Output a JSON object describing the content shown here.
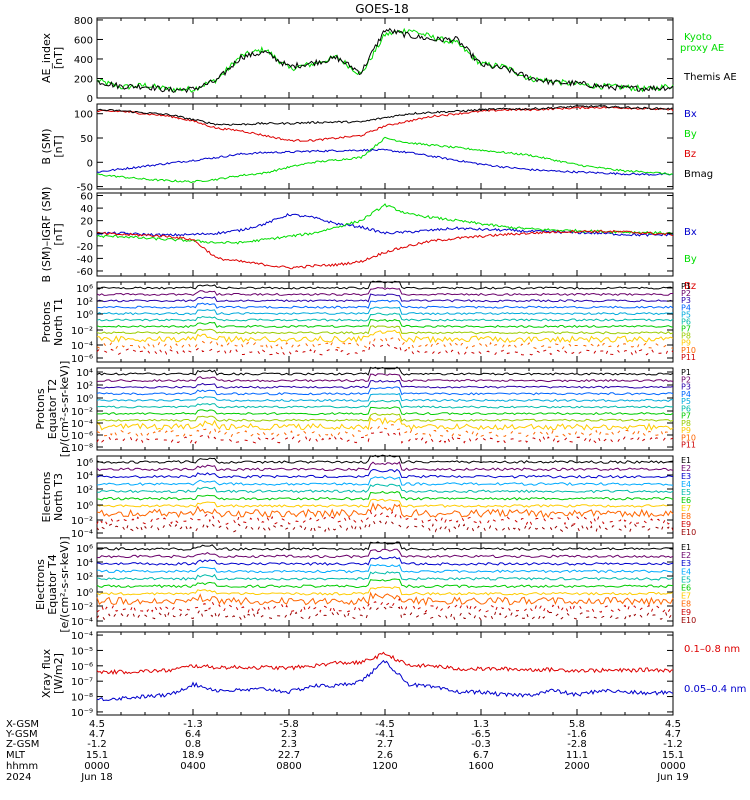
{
  "title": "GOES-18",
  "chart_data": [
    {
      "type": "line",
      "panel": "ae",
      "ylabel": "AE_index [nT]",
      "yticks": [
        "0",
        "200",
        "400",
        "600",
        "800"
      ],
      "ylim": [
        0,
        820
      ],
      "x": [
        0,
        1,
        2,
        3,
        4,
        5,
        6,
        7,
        8,
        9,
        10,
        11,
        12,
        13,
        14,
        15,
        16,
        17,
        18,
        19,
        20,
        21,
        22,
        23,
        24
      ],
      "series": [
        {
          "name": "Kyoto proxy AE",
          "color": "#00dd00",
          "values": [
            180,
            110,
            130,
            90,
            90,
            190,
            430,
            500,
            300,
            350,
            420,
            240,
            650,
            700,
            620,
            560,
            350,
            320,
            200,
            170,
            140,
            120,
            110,
            90,
            130
          ]
        },
        {
          "name": "Themis AE",
          "color": "#000000",
          "values": [
            170,
            120,
            120,
            80,
            90,
            180,
            420,
            470,
            320,
            360,
            410,
            260,
            700,
            640,
            600,
            600,
            340,
            300,
            210,
            160,
            150,
            120,
            100,
            100,
            110
          ]
        }
      ]
    },
    {
      "type": "line",
      "panel": "b",
      "ylabel": "B (SM) [nT]",
      "yticks": [
        "-50",
        "0",
        "50",
        "100"
      ],
      "ylim": [
        -55,
        120
      ],
      "x": [
        0,
        1,
        2,
        3,
        4,
        5,
        6,
        7,
        8,
        9,
        10,
        11,
        12,
        13,
        14,
        15,
        16,
        17,
        18,
        19,
        20,
        21,
        22,
        23,
        24
      ],
      "series": [
        {
          "name": "Bx",
          "color": "#0000cc",
          "values": [
            -20,
            -14,
            -8,
            -2,
            4,
            10,
            17,
            20,
            21,
            23,
            24,
            25,
            25,
            20,
            12,
            4,
            -4,
            -10,
            -15,
            -18,
            -20,
            -22,
            -24,
            -25,
            -25
          ]
        },
        {
          "name": "By",
          "color": "#00dd00",
          "values": [
            -25,
            -30,
            -35,
            -38,
            -40,
            -35,
            -27,
            -22,
            -10,
            0,
            5,
            10,
            50,
            40,
            35,
            30,
            25,
            20,
            15,
            5,
            -5,
            -12,
            -18,
            -20,
            -25
          ]
        },
        {
          "name": "Bz",
          "color": "#dd0000",
          "values": [
            105,
            105,
            100,
            95,
            85,
            70,
            65,
            55,
            45,
            45,
            50,
            55,
            75,
            85,
            95,
            100,
            105,
            108,
            108,
            110,
            112,
            113,
            112,
            110,
            108
          ]
        },
        {
          "name": "Bmag",
          "color": "#000000",
          "values": [
            108,
            106,
            102,
            98,
            88,
            78,
            78,
            80,
            80,
            82,
            83,
            83,
            92,
            100,
            103,
            105,
            108,
            110,
            110,
            112,
            115,
            115,
            113,
            111,
            110
          ]
        }
      ]
    },
    {
      "type": "line",
      "panel": "db",
      "ylabel": "B (SM)-IGRF (SM) [nT]",
      "yticks": [
        "-60",
        "-40",
        "-20",
        "0",
        "20",
        "40",
        "60"
      ],
      "ylim": [
        -68,
        64
      ],
      "x": [
        0,
        1,
        2,
        3,
        4,
        5,
        6,
        7,
        8,
        9,
        10,
        11,
        12,
        13,
        14,
        15,
        16,
        17,
        18,
        19,
        20,
        21,
        22,
        23,
        24
      ],
      "series": [
        {
          "name": "Bx",
          "color": "#0000cc",
          "values": [
            0,
            0,
            -2,
            -3,
            -2,
            0,
            5,
            15,
            30,
            25,
            15,
            10,
            0,
            2,
            5,
            8,
            6,
            5,
            3,
            2,
            1,
            0,
            -2,
            -3,
            -2
          ]
        },
        {
          "name": "By",
          "color": "#00dd00",
          "values": [
            -5,
            -5,
            -8,
            -10,
            -12,
            -15,
            -15,
            -10,
            -5,
            0,
            10,
            20,
            45,
            30,
            25,
            20,
            15,
            10,
            7,
            5,
            4,
            3,
            2,
            1,
            0
          ]
        },
        {
          "name": "Bz",
          "color": "#dd0000",
          "values": [
            0,
            -2,
            -3,
            -5,
            -10,
            -40,
            -45,
            -50,
            -55,
            -52,
            -50,
            -45,
            -30,
            -20,
            -12,
            -8,
            -5,
            -2,
            0,
            2,
            3,
            3,
            2,
            0,
            -2
          ]
        }
      ]
    },
    {
      "type": "line",
      "panel": "pn",
      "ylabel": "Protons North T1",
      "yticks": [
        "10⁶",
        "10²",
        "10⁰",
        "10⁻²",
        "10⁻⁴",
        "10⁻⁶"
      ],
      "legend": [
        "P1",
        "P2",
        "P3",
        "P4",
        "P5",
        "P6",
        "P7",
        "P8",
        "P9",
        "P10",
        "P11"
      ]
    },
    {
      "type": "line",
      "panel": "pe",
      "ylabel": "Protons Equator T2 [p/(cm²-s-sr-keV)]",
      "yticks": [
        "10⁴",
        "10²",
        "10⁰",
        "10⁻²",
        "10⁻⁴",
        "10⁻⁶",
        "10⁻⁸"
      ],
      "legend": [
        "P1",
        "P2",
        "P3",
        "P4",
        "P5",
        "P6",
        "P7",
        "P8",
        "P9",
        "P10",
        "P11"
      ]
    },
    {
      "type": "line",
      "panel": "en",
      "ylabel": "Electrons North T3",
      "yticks": [
        "10⁶",
        "10⁴",
        "10²",
        "10⁰",
        "10⁻²",
        "10⁻⁴"
      ],
      "legend": [
        "E1",
        "E2",
        "E3",
        "E4",
        "E5",
        "E6",
        "E7",
        "E8",
        "E9",
        "E10"
      ]
    },
    {
      "type": "line",
      "panel": "ee",
      "ylabel": "Electrons Equator T4 [e/(cm²-s-sr-keV)]",
      "yticks": [
        "10⁶",
        "10⁴",
        "10²",
        "10⁰",
        "10⁻²",
        "10⁻⁴"
      ],
      "legend": [
        "E1",
        "E2",
        "E3",
        "E4",
        "E5",
        "E6",
        "E7",
        "E8",
        "E9",
        "E10"
      ]
    },
    {
      "type": "line",
      "panel": "xray",
      "ylabel": "Xray flux [W/m²]",
      "yticks": [
        "10⁻⁴",
        "10⁻⁵",
        "10⁻⁶",
        "10⁻⁷",
        "10⁻⁸",
        "10⁻⁹"
      ],
      "x": [
        0,
        1,
        2,
        3,
        4,
        5,
        6,
        7,
        8,
        9,
        10,
        11,
        12,
        13,
        14,
        15,
        16,
        17,
        18,
        19,
        20,
        21,
        22,
        23,
        24
      ],
      "series": [
        {
          "name": "0.1–0.8 nm",
          "color": "#dd0000",
          "log10_values": [
            -6.4,
            -6.4,
            -6.35,
            -6.3,
            -6.0,
            -6.1,
            -6.1,
            -6.1,
            -6.15,
            -6.0,
            -5.8,
            -5.8,
            -5.2,
            -6.0,
            -6.0,
            -6.2,
            -6.2,
            -6.2,
            -6.25,
            -6.25,
            -6.3,
            -6.3,
            -6.3,
            -6.25,
            -6.3
          ]
        },
        {
          "name": "0.05–0.4 nm",
          "color": "#0000cc",
          "log10_values": [
            -8.2,
            -8.1,
            -8.0,
            -7.9,
            -7.2,
            -7.6,
            -7.6,
            -7.5,
            -7.7,
            -7.3,
            -7.3,
            -7.0,
            -5.7,
            -7.2,
            -7.4,
            -7.7,
            -7.7,
            -7.9,
            -7.9,
            -7.6,
            -7.9,
            -7.6,
            -7.7,
            -7.8,
            -7.7
          ]
        }
      ]
    }
  ],
  "panels": {
    "ae": {
      "label_l1": "AE_index",
      "label_l2": "[nT]",
      "ticks": [
        "0",
        "200",
        "400",
        "600",
        "800"
      ],
      "legend": [
        "Kyoto",
        "proxy AE",
        "Themis AE"
      ]
    },
    "b": {
      "label_l1": "B (SM)",
      "label_l2": "[nT]",
      "ticks": [
        "-50",
        "0",
        "50",
        "100"
      ],
      "legend": [
        "Bx",
        "By",
        "Bz",
        "Bmag"
      ]
    },
    "db": {
      "label_l1": "B (SM)–IGRF (SM)",
      "label_l2": "[nT]",
      "ticks": [
        "-60",
        "-40",
        "-20",
        "0",
        "20",
        "40",
        "60"
      ],
      "legend": [
        "Bx",
        "By",
        "Bz"
      ]
    },
    "pn": {
      "label_l1": "Protons",
      "label_l2": "North T1",
      "ticks": [
        "10⁶",
        "10²",
        "10⁰",
        "10⁻²",
        "10⁻⁴",
        "10⁻⁶"
      ]
    },
    "pe": {
      "label_l1": "Protons",
      "label_l2": "Equator T2",
      "label_l3": "[p/(cm²-s-sr-keV)]",
      "ticks": [
        "10⁴",
        "10²",
        "10⁰",
        "10⁻²",
        "10⁻⁴",
        "10⁻⁶",
        "10⁻⁸"
      ]
    },
    "en": {
      "label_l1": "Electrons",
      "label_l2": "North T3",
      "ticks": [
        "10⁶",
        "10⁴",
        "10²",
        "10⁰",
        "10⁻²",
        "10⁻⁴"
      ]
    },
    "ee": {
      "label_l1": "Electrons",
      "label_l2": "Equator T4",
      "label_l3": "[e/(cm²-s-sr-keV)]",
      "ticks": [
        "10⁶",
        "10⁴",
        "10²",
        "10⁰",
        "10⁻²",
        "10⁻⁴"
      ]
    },
    "xray": {
      "label_l1": "Xray flux",
      "label_l2": "[W/m2]",
      "ticks": [
        "10⁻⁴",
        "10⁻⁵",
        "10⁻⁶",
        "10⁻⁷",
        "10⁻⁸",
        "10⁻⁹"
      ],
      "legend": [
        "0.1–0.8 nm",
        "0.05–0.4 nm"
      ]
    }
  },
  "legend_colors": {
    "P": [
      "#000000",
      "#6a006a",
      "#2a00aa",
      "#0066ff",
      "#00aadd",
      "#00bbaa",
      "#00cc00",
      "#99cc00",
      "#ffcc00",
      "#ff6600",
      "#cc0000"
    ],
    "E": [
      "#000000",
      "#6a006a",
      "#0000cc",
      "#00aaff",
      "#00bbaa",
      "#00cc00",
      "#ffcc00",
      "#ff6600",
      "#cc0000",
      "#990000"
    ]
  },
  "footer": {
    "row_labels": [
      "X-GSM",
      "Y-GSM",
      "Z-GSM",
      "MLT",
      "hhmm",
      "2024"
    ],
    "columns": [
      [
        "4.5",
        "4.7",
        "-1.2",
        "15.1",
        "0000",
        "Jun 18"
      ],
      [
        "-1.3",
        "6.4",
        "0.8",
        "18.9",
        "0400",
        ""
      ],
      [
        "-5.8",
        "2.3",
        "2.3",
        "22.7",
        "0800",
        ""
      ],
      [
        "-4.5",
        "-4.1",
        "2.7",
        "2.6",
        "1200",
        ""
      ],
      [
        "1.3",
        "-6.5",
        "-0.3",
        "6.7",
        "1600",
        ""
      ],
      [
        "5.8",
        "-1.6",
        "-2.8",
        "11.1",
        "2000",
        ""
      ],
      [
        "4.5",
        "4.7",
        "-1.2",
        "15.1",
        "0000",
        "Jun 19"
      ]
    ]
  }
}
